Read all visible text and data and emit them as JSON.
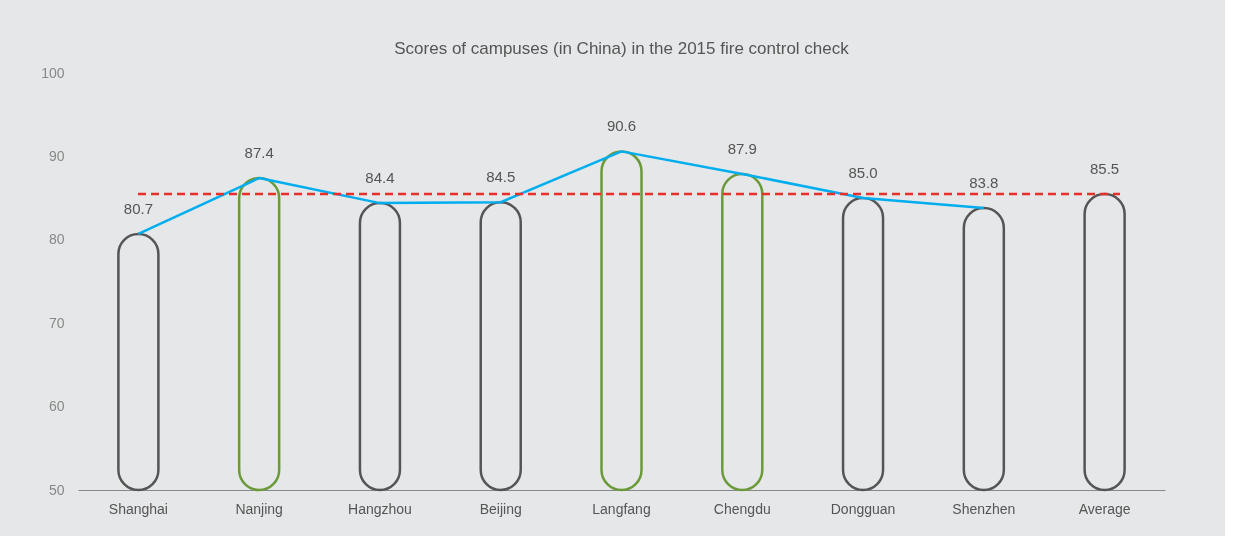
{
  "chart_data": {
    "type": "bar",
    "title": "Scores of campuses (in China) in the 2015 fire control check",
    "categories": [
      "Shanghai",
      "Nanjing",
      "Hangzhou",
      "Beijing",
      "Langfang",
      "Chengdu",
      "Dongguan",
      "Shenzhen",
      "Average"
    ],
    "series": [
      {
        "colors": [
          "#555555",
          "#6a9a3a",
          "#555555",
          "#555555",
          "#6a9a3a",
          "#6a9a3a",
          "#555555",
          "#555555",
          "#555555"
        ],
        "values": [
          80.7,
          87.4,
          84.4,
          84.5,
          90.6,
          87.9,
          85.0,
          83.8,
          85.5
        ],
        "value_labels": [
          "80.7",
          "87.4",
          "84.4",
          "84.5",
          "90.6",
          "87.9",
          "85.0",
          "83.8",
          "85.5"
        ]
      },
      {
        "type": "line",
        "color": "#00aeef",
        "values": [
          80.7,
          87.4,
          84.4,
          84.5,
          90.6,
          87.9,
          85.0,
          83.8,
          null
        ]
      }
    ],
    "ylim": [
      50,
      100
    ],
    "yticks": [
      50,
      60,
      70,
      80,
      90,
      100
    ],
    "grid": false,
    "ref_lines": [
      {
        "axis": "y",
        "value": 85.5,
        "color": "#e8302a",
        "line_style": "dashed"
      }
    ]
  }
}
